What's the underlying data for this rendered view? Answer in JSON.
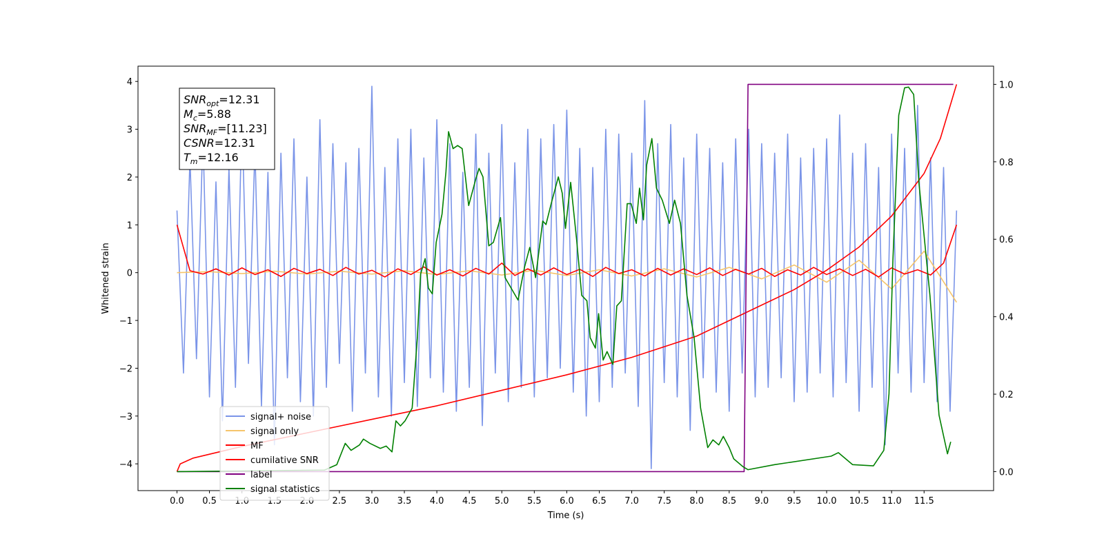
{
  "chart_data": {
    "type": "line",
    "xlabel": "Time (s)",
    "ylabel": "Whitened strain",
    "xlim": [
      -0.6,
      12.57
    ],
    "ylim": [
      -4.56,
      4.32
    ],
    "y2lim": [
      -0.049,
      1.047
    ],
    "xticks": [
      {
        "value": 0,
        "label": "0.0"
      },
      0.5,
      {
        "value": 1,
        "label": "1.0"
      },
      1.5,
      {
        "value": 2,
        "label": "2.0"
      },
      2.5,
      {
        "value": 3,
        "label": "3.0"
      },
      3.5,
      {
        "value": 4,
        "label": "4.0"
      },
      4.5,
      {
        "value": 5,
        "label": "5.0"
      },
      5.5,
      {
        "value": 6,
        "label": "6.0"
      },
      6.5,
      {
        "value": 7,
        "label": "7.0"
      },
      7.5,
      {
        "value": 8,
        "label": "8.0"
      },
      8.5,
      {
        "value": 9,
        "label": "9.0"
      },
      9.5,
      {
        "value": 10,
        "label": "10.0"
      },
      10.5,
      {
        "value": 11,
        "label": "11.0"
      },
      11.5
    ],
    "yticks": [
      {
        "value": -4,
        "label": "−4"
      },
      {
        "value": -3,
        "label": "−3"
      },
      {
        "value": -2,
        "label": "−2"
      },
      {
        "value": -1,
        "label": "−1"
      },
      0,
      1,
      2,
      3,
      4
    ],
    "y2ticks": [
      {
        "value": 0,
        "label": "0.0"
      },
      0.2,
      0.4,
      0.6,
      0.8,
      {
        "value": 1,
        "label": "1.0"
      }
    ],
    "grid": false,
    "legend": "lower left",
    "annotation": [
      {
        "main": "SNR",
        "sub": "opt",
        "rest": "=12.31"
      },
      {
        "main": "M",
        "sub": "c",
        "rest": "=5.88"
      },
      {
        "main": "SNR",
        "sub": "MF",
        "rest": "=[11.23]"
      },
      {
        "main": "CSNR",
        "rest": "=12.31"
      },
      {
        "main": "T",
        "sub": "m",
        "rest": "=12.16"
      }
    ],
    "series": [
      {
        "name": "signal+ noise",
        "color": "#7a94e8",
        "x": [
          0,
          0.1,
          0.2,
          0.3,
          0.4,
          0.5,
          0.6,
          0.7,
          0.8,
          0.9,
          1,
          1.1,
          1.2,
          1.3,
          1.4,
          1.5,
          1.6,
          1.7,
          1.8,
          1.9,
          2,
          2.1,
          2.2,
          2.3,
          2.4,
          2.5,
          2.6,
          2.7,
          2.8,
          2.9,
          3,
          3.1,
          3.2,
          3.3,
          3.4,
          3.5,
          3.6,
          3.7,
          3.8,
          3.9,
          4,
          4.1,
          4.2,
          4.3,
          4.4,
          4.5,
          4.6,
          4.7,
          4.8,
          4.9,
          5,
          5.1,
          5.2,
          5.3,
          5.4,
          5.5,
          5.6,
          5.7,
          5.8,
          5.9,
          6,
          6.1,
          6.2,
          6.3,
          6.4,
          6.5,
          6.6,
          6.7,
          6.8,
          6.9,
          7,
          7.1,
          7.2,
          7.3,
          7.4,
          7.5,
          7.6,
          7.7,
          7.8,
          7.9,
          8,
          8.1,
          8.2,
          8.3,
          8.4,
          8.5,
          8.6,
          8.7,
          8.8,
          8.9,
          9,
          9.1,
          9.2,
          9.3,
          9.4,
          9.5,
          9.6,
          9.7,
          9.8,
          9.9,
          10,
          10.1,
          10.2,
          10.3,
          10.4,
          10.5,
          10.6,
          10.7,
          10.8,
          10.9,
          11,
          11.1,
          11.2,
          11.3,
          11.4,
          11.5,
          11.6,
          11.7,
          11.8,
          11.9,
          12
        ],
        "values": [
          1.3,
          -2.1,
          2.4,
          -1.8,
          2.9,
          -2.6,
          1.9,
          -3.1,
          2.2,
          -2.4,
          3.3,
          -1.9,
          2.6,
          -2.8,
          2.1,
          -3.6,
          2.5,
          -2.2,
          2.8,
          -2.7,
          2.0,
          -3.0,
          3.2,
          -2.4,
          2.7,
          -1.9,
          2.3,
          -2.9,
          2.6,
          -2.1,
          3.9,
          -2.6,
          2.2,
          -3.0,
          2.8,
          -2.3,
          3.0,
          -2.8,
          2.4,
          -2.2,
          3.2,
          -2.5,
          2.7,
          -2.9,
          2.1,
          -2.4,
          2.9,
          -3.2,
          2.5,
          -2.1,
          3.1,
          -2.7,
          2.3,
          -2.4,
          3.0,
          -2.6,
          2.8,
          -2.2,
          3.1,
          -2.0,
          3.4,
          -2.5,
          2.6,
          -3.0,
          2.2,
          -2.7,
          3.0,
          -2.4,
          2.9,
          -2.1,
          2.5,
          -2.8,
          3.6,
          -4.1,
          2.7,
          -2.3,
          3.1,
          -2.6,
          2.4,
          -3.3,
          2.9,
          -2.2,
          2.6,
          -2.5,
          2.3,
          -2.9,
          2.8,
          -2.1,
          3.0,
          -2.6,
          2.7,
          -2.4,
          2.5,
          -2.2,
          2.9,
          -2.7,
          2.4,
          -2.5,
          2.6,
          -2.1,
          2.8,
          -2.6,
          3.3,
          -2.3,
          2.5,
          -2.9,
          2.7,
          -2.4,
          2.2,
          -3.6,
          2.9,
          -2.1,
          2.6,
          -2.5,
          3.5,
          -2.3,
          2.4,
          -2.7,
          2.2,
          -2.9,
          1.3
        ]
      },
      {
        "name": "signal only",
        "color": "#f5c46a",
        "x": [
          0,
          0.5,
          1,
          1.5,
          2,
          2.5,
          3,
          3.5,
          4,
          4.5,
          5,
          5.5,
          6,
          6.5,
          7,
          7.5,
          8,
          8.5,
          9,
          9.5,
          10,
          10.5,
          11,
          11.5,
          12
        ],
        "values": [
          0,
          0.02,
          -0.02,
          0.03,
          -0.03,
          0.03,
          -0.03,
          0.04,
          -0.04,
          0.04,
          -0.05,
          0.05,
          -0.06,
          0.06,
          -0.07,
          0.08,
          -0.09,
          0.11,
          -0.13,
          0.16,
          -0.2,
          0.26,
          -0.34,
          0.45,
          -0.62
        ]
      },
      {
        "name": "MF",
        "color": "#ff0000",
        "x": [
          0,
          0.2,
          0.4,
          0.6,
          0.8,
          1,
          1.2,
          1.4,
          1.6,
          1.8,
          2,
          2.2,
          2.4,
          2.6,
          2.8,
          3,
          3.2,
          3.4,
          3.6,
          3.8,
          4,
          4.2,
          4.4,
          4.6,
          4.8,
          5,
          5.2,
          5.4,
          5.6,
          5.8,
          6,
          6.2,
          6.4,
          6.6,
          6.8,
          7,
          7.2,
          7.4,
          7.6,
          7.8,
          8,
          8.2,
          8.4,
          8.6,
          8.8,
          9,
          9.2,
          9.4,
          9.6,
          9.8,
          10,
          10.2,
          10.4,
          10.6,
          10.8,
          11,
          11.2,
          11.4,
          11.6,
          11.8,
          12
        ],
        "values": [
          1.0,
          0.04,
          -0.03,
          0.08,
          -0.05,
          0.1,
          -0.04,
          0.06,
          -0.08,
          0.09,
          -0.02,
          0.07,
          -0.06,
          0.11,
          -0.03,
          0.05,
          -0.09,
          0.08,
          -0.04,
          0.12,
          -0.05,
          0.06,
          -0.07,
          0.09,
          -0.03,
          0.2,
          -0.06,
          0.08,
          -0.05,
          0.1,
          -0.04,
          0.07,
          -0.08,
          0.11,
          -0.02,
          0.06,
          -0.07,
          0.09,
          -0.05,
          0.08,
          -0.04,
          0.1,
          -0.06,
          0.07,
          -0.03,
          0.09,
          -0.08,
          0.06,
          -0.05,
          0.11,
          -0.04,
          0.08,
          -0.06,
          0.07,
          -0.09,
          0.1,
          -0.03,
          0.06,
          -0.05,
          0.2,
          1.0
        ]
      },
      {
        "name": "cumilative SNR",
        "color": "#ff0000",
        "axis": "y2",
        "x": [
          0,
          0.05,
          0.25,
          0.5,
          1,
          2,
          3,
          4,
          5,
          6,
          7,
          8,
          8.5,
          9,
          9.5,
          10,
          10.5,
          11,
          11.5,
          11.75,
          12
        ],
        "values": [
          0,
          0.02,
          0.035,
          0.045,
          0.065,
          0.1,
          0.135,
          0.17,
          0.21,
          0.25,
          0.295,
          0.35,
          0.39,
          0.43,
          0.47,
          0.52,
          0.58,
          0.66,
          0.77,
          0.86,
          1.0
        ]
      },
      {
        "name": "label",
        "color": "#800080",
        "axis": "y2",
        "x": [
          0,
          8.73,
          8.79,
          11.95
        ],
        "values": [
          0,
          0,
          1,
          1
        ]
      },
      {
        "name": "signal statistics",
        "color": "#008000",
        "axis": "y2",
        "x": [
          0,
          2.27,
          2.46,
          2.59,
          2.68,
          2.81,
          2.87,
          2.97,
          3.13,
          3.22,
          3.31,
          3.37,
          3.44,
          3.51,
          3.62,
          3.7,
          3.75,
          3.82,
          3.87,
          3.93,
          3.99,
          4.08,
          4.14,
          4.18,
          4.25,
          4.32,
          4.39,
          4.49,
          4.6,
          4.65,
          4.71,
          4.8,
          4.87,
          4.98,
          5.05,
          5.25,
          5.35,
          5.43,
          5.52,
          5.63,
          5.68,
          5.76,
          5.87,
          5.93,
          5.98,
          6.06,
          6.15,
          6.23,
          6.31,
          6.36,
          6.44,
          6.49,
          6.56,
          6.62,
          6.71,
          6.77,
          6.84,
          6.93,
          6.99,
          7.07,
          7.12,
          7.18,
          7.23,
          7.31,
          7.38,
          7.47,
          7.58,
          7.66,
          7.75,
          7.85,
          7.96,
          8.06,
          8.17,
          8.25,
          8.34,
          8.41,
          8.5,
          8.57,
          8.71,
          8.79,
          9.2,
          10.07,
          10.18,
          10.4,
          10.72,
          10.88,
          10.96,
          11.02,
          11.11,
          11.2,
          11.26,
          11.34,
          11.42,
          11.59,
          11.73,
          11.86,
          11.91
        ],
        "values": [
          0,
          0.004,
          0.018,
          0.073,
          0.055,
          0.069,
          0.084,
          0.073,
          0.06,
          0.066,
          0.051,
          0.131,
          0.118,
          0.131,
          0.164,
          0.346,
          0.51,
          0.55,
          0.474,
          0.459,
          0.592,
          0.665,
          0.774,
          0.878,
          0.834,
          0.842,
          0.834,
          0.687,
          0.756,
          0.783,
          0.761,
          0.583,
          0.592,
          0.656,
          0.501,
          0.443,
          0.528,
          0.579,
          0.501,
          0.647,
          0.638,
          0.692,
          0.761,
          0.719,
          0.628,
          0.747,
          0.601,
          0.455,
          0.441,
          0.346,
          0.319,
          0.408,
          0.288,
          0.31,
          0.277,
          0.428,
          0.441,
          0.692,
          0.692,
          0.641,
          0.732,
          0.65,
          0.792,
          0.86,
          0.732,
          0.701,
          0.641,
          0.701,
          0.641,
          0.455,
          0.346,
          0.164,
          0.062,
          0.082,
          0.069,
          0.091,
          0.062,
          0.033,
          0.013,
          0.005,
          0.018,
          0.04,
          0.049,
          0.018,
          0.015,
          0.055,
          0.201,
          0.546,
          0.92,
          0.991,
          0.993,
          0.974,
          0.747,
          0.455,
          0.146,
          0.046,
          0.077
        ]
      }
    ]
  }
}
